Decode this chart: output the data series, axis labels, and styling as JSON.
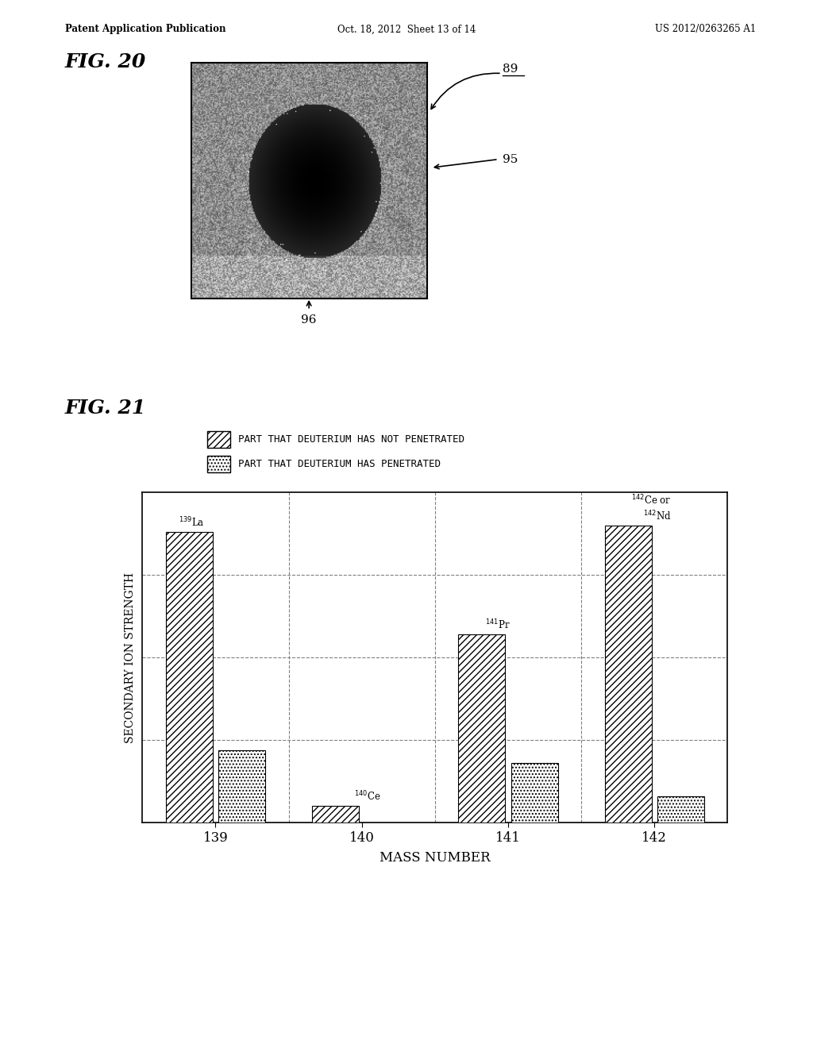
{
  "page_header_left": "Patent Application Publication",
  "page_header_mid": "Oct. 18, 2012  Sheet 13 of 14",
  "page_header_right": "US 2012/0263265 A1",
  "fig20_label": "FIG. 20",
  "fig21_label": "FIG. 21",
  "label_89": "89",
  "label_95": "95",
  "label_96": "96",
  "legend1": "PART THAT DEUTERIUM HAS NOT PENETRATED",
  "legend2": "PART THAT DEUTERIUM HAS PENETRATED",
  "xlabel": "MASS NUMBER",
  "ylabel": "SECONDARY ION STRENGTH",
  "x_tick_labels": [
    "139",
    "140",
    "141",
    "142"
  ],
  "bar_not_penetrated": [
    88,
    5,
    57,
    90
  ],
  "bar_penetrated": [
    22,
    0,
    18,
    8
  ],
  "nuclide_label_139_not": "139",
  "nuclide_label_139_elem": "La",
  "nuclide_label_140_not": "140",
  "nuclide_label_140_elem": "Ce",
  "nuclide_label_141_not": "141",
  "nuclide_label_141_elem": "Pr",
  "nuclide_label_142_not": "142",
  "nuclide_label_142_elem1": "Ce or",
  "nuclide_label_142_elem2": "142",
  "nuclide_label_142_elem3": "Nd",
  "bar_width": 0.32,
  "ylim": [
    0,
    100
  ],
  "background_color": "#ffffff",
  "text_color": "#000000"
}
